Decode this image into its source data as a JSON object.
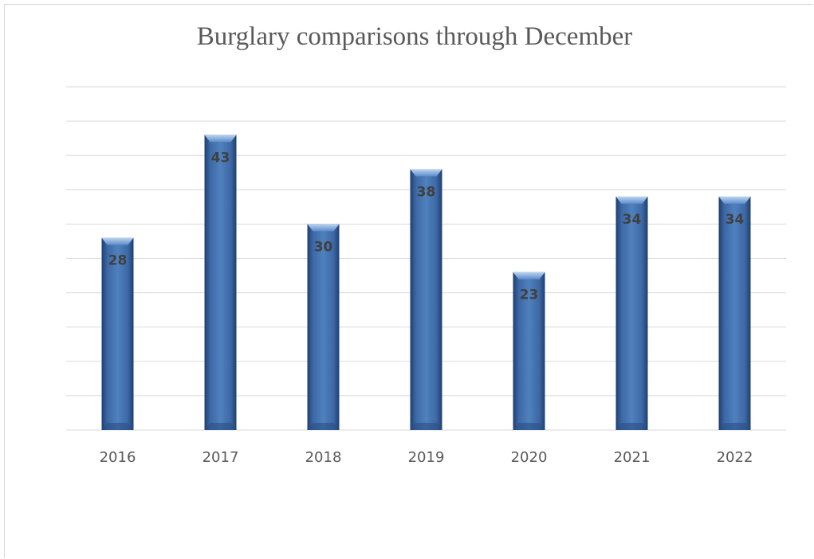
{
  "chart_data": {
    "type": "bar",
    "title": "Burglary comparisons through December",
    "xlabel": "",
    "ylabel": "",
    "categories": [
      "2016",
      "2017",
      "2018",
      "2019",
      "2020",
      "2021",
      "2022"
    ],
    "values": [
      28,
      43,
      30,
      38,
      23,
      34,
      34
    ],
    "data_labels": [
      "28",
      "43",
      "30",
      "38",
      "23",
      "34",
      "34"
    ],
    "ylim": [
      0,
      50
    ],
    "grid": true,
    "legend": "none",
    "colors": {
      "bar": "#4f81bd",
      "bar_dark": "#1f3f6e",
      "bar_light": "#8fb4e3",
      "grid": "#d9d9d9",
      "label": "#404040",
      "tick": "#595959"
    }
  }
}
